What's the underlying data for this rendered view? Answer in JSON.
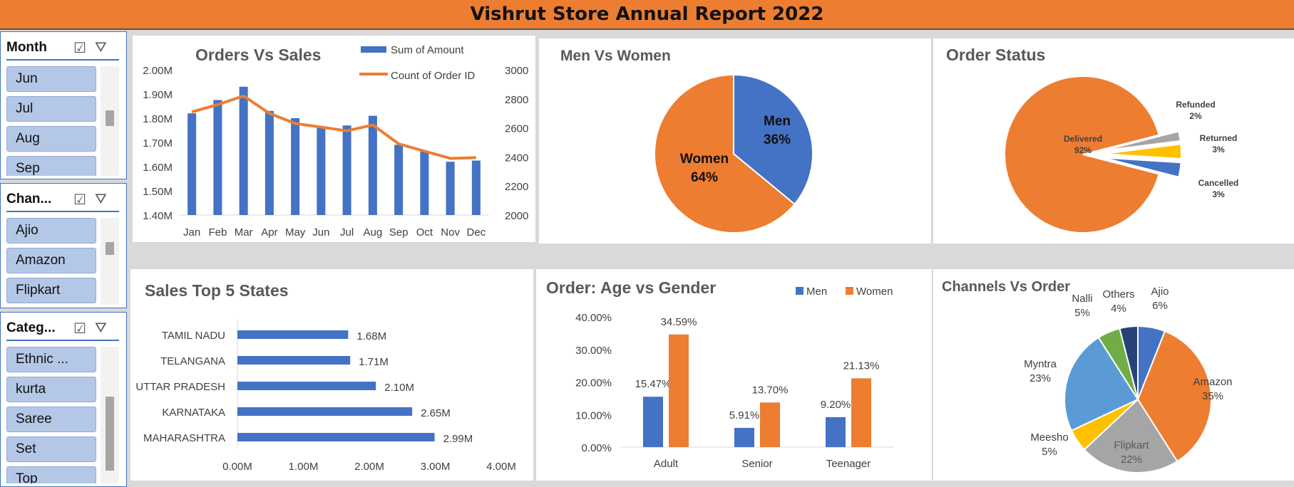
{
  "header": {
    "title": "Vishrut Store Annual Report 2022"
  },
  "slicers": [
    {
      "title": "Month",
      "items": [
        "Jun",
        "Jul",
        "Aug",
        "Sep"
      ],
      "icons": [
        "multi-select-icon",
        "clear-filter-icon"
      ]
    },
    {
      "title": "Chan...",
      "items": [
        "Ajio",
        "Amazon",
        "Flipkart"
      ],
      "icons": [
        "multi-select-icon",
        "clear-filter-icon"
      ]
    },
    {
      "title": "Categ...",
      "items": [
        "Ethnic ...",
        "kurta",
        "Saree",
        "Set",
        "Top"
      ],
      "icons": [
        "multi-select-icon",
        "clear-filter-icon"
      ]
    }
  ],
  "chart_data": [
    {
      "id": "orders_vs_sales",
      "type": "bar",
      "title": "Orders Vs Sales",
      "categories": [
        "Jan",
        "Feb",
        "Mar",
        "Apr",
        "May",
        "Jun",
        "Jul",
        "Aug",
        "Sep",
        "Oct",
        "Nov",
        "Dec"
      ],
      "series": [
        {
          "name": "Sum of Amount",
          "kind": "bar",
          "axis": "left",
          "values": [
            1.82,
            1.875,
            1.93,
            1.83,
            1.8,
            1.76,
            1.77,
            1.81,
            1.69,
            1.665,
            1.62,
            1.625
          ]
        },
        {
          "name": "Count of Order ID",
          "kind": "line",
          "axis": "right",
          "values": [
            2710,
            2760,
            2820,
            2700,
            2630,
            2605,
            2580,
            2620,
            2490,
            2440,
            2390,
            2395
          ]
        }
      ],
      "y_left": {
        "ticks": [
          "2.00M",
          "1.90M",
          "1.80M",
          "1.70M",
          "1.60M",
          "1.50M",
          "1.40M"
        ],
        "ylim": [
          1.4,
          2.0
        ]
      },
      "y_right": {
        "ticks": [
          "3000",
          "2800",
          "2600",
          "2400",
          "2200",
          "2000"
        ],
        "ylim": [
          2000,
          3000
        ]
      },
      "legend": "top-right",
      "colors": {
        "bar": "#4472c4",
        "line": "#ed7d31"
      }
    },
    {
      "id": "men_vs_women",
      "type": "pie",
      "title": "Men Vs Women",
      "slices": [
        {
          "label": "Men",
          "pct": "36%",
          "value": 36,
          "color": "#4472c4"
        },
        {
          "label": "Women",
          "pct": "64%",
          "value": 64,
          "color": "#ed7d31"
        }
      ]
    },
    {
      "id": "order_status",
      "type": "pie",
      "title": "Order Status",
      "slices": [
        {
          "label": "Delivered",
          "pct": "92%",
          "value": 92,
          "color": "#ed7d31"
        },
        {
          "label": "Refunded",
          "pct": "2%",
          "value": 2,
          "color": "#a5a5a5"
        },
        {
          "label": "Returned",
          "pct": "3%",
          "value": 3,
          "color": "#ffc000"
        },
        {
          "label": "Cancelled",
          "pct": "3%",
          "value": 3,
          "color": "#4472c4"
        }
      ]
    },
    {
      "id": "sales_top5_states",
      "type": "bar",
      "orientation": "horizontal",
      "title": "Sales Top 5 States",
      "categories": [
        "TAMIL NADU",
        "TELANGANA",
        "UTTAR PRADESH",
        "KARNATAKA",
        "MAHARASHTRA"
      ],
      "values": [
        1.68,
        1.71,
        2.1,
        2.65,
        2.99
      ],
      "value_labels": [
        "1.68M",
        "1.71M",
        "2.10M",
        "2.65M",
        "2.99M"
      ],
      "x_ticks": [
        "0.00M",
        "1.00M",
        "2.00M",
        "3.00M",
        "4.00M"
      ],
      "xlim": [
        0,
        4
      ],
      "color": "#4472c4"
    },
    {
      "id": "age_vs_gender",
      "type": "bar",
      "title": "Order: Age vs Gender",
      "categories": [
        "Adult",
        "Senior",
        "Teenager"
      ],
      "series": [
        {
          "name": "Men",
          "values": [
            15.47,
            5.91,
            9.2
          ],
          "labels": [
            "15.47%",
            "5.91%",
            "9.20%"
          ],
          "color": "#4472c4"
        },
        {
          "name": "Women",
          "values": [
            34.59,
            13.7,
            21.13
          ],
          "labels": [
            "34.59%",
            "13.70%",
            "21.13%"
          ],
          "color": "#ed7d31"
        }
      ],
      "y_ticks": [
        "40.00%",
        "30.00%",
        "20.00%",
        "10.00%",
        "0.00%"
      ],
      "ylim": [
        0,
        40
      ],
      "legend": "top-right"
    },
    {
      "id": "channels_vs_order",
      "type": "pie",
      "title": "Channels Vs Order",
      "slices": [
        {
          "label": "Ajio",
          "pct": "6%",
          "value": 6,
          "color": "#4472c4"
        },
        {
          "label": "Amazon",
          "pct": "35%",
          "value": 35,
          "color": "#ed7d31"
        },
        {
          "label": "Flipkart",
          "pct": "22%",
          "value": 22,
          "color": "#a5a5a5"
        },
        {
          "label": "Meesho",
          "pct": "5%",
          "value": 5,
          "color": "#ffc000"
        },
        {
          "label": "Myntra",
          "pct": "23%",
          "value": 23,
          "color": "#5b9bd5"
        },
        {
          "label": "Nalli",
          "pct": "5%",
          "value": 5,
          "color": "#70ad47"
        },
        {
          "label": "Others",
          "pct": "4%",
          "value": 4,
          "color": "#264478"
        }
      ]
    }
  ]
}
